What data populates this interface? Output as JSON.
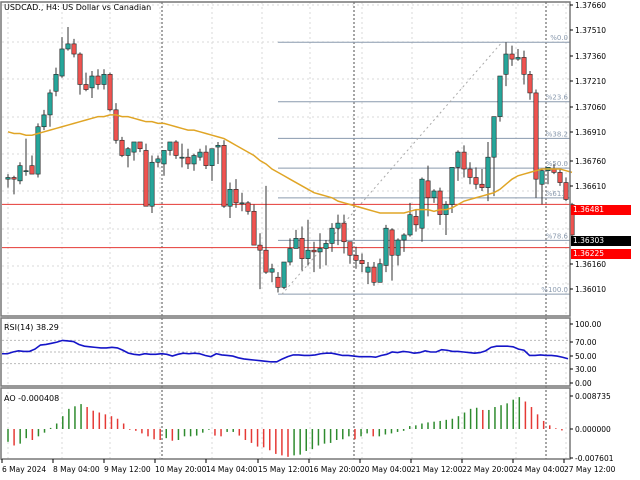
{
  "header": {
    "symbol_label": "USDCAD., H4:  US Dollar vs Canadian"
  },
  "colors": {
    "bull": "#26a69a",
    "bear": "#ef5350",
    "ma": "#e0a526",
    "rsi": "#1515c8",
    "ao_up": "#2e8b2e",
    "ao_down": "#e53935",
    "hline": "#e53935",
    "fib": "#8a9aae",
    "grid": "#d8d8d8",
    "frame": "#777777"
  },
  "price_axis": {
    "ticks": [
      "1.37660",
      "1.37510",
      "1.37360",
      "1.37210",
      "1.37060",
      "1.36910",
      "1.36760",
      "1.36610",
      "1.36160",
      "1.36010"
    ],
    "tags": [
      {
        "label": "1.36481",
        "bg": "#ff0000",
        "y": 210
      },
      {
        "label": "1.36303",
        "bg": "#000000",
        "y": 241
      },
      {
        "label": "1.36225",
        "bg": "#ff0000",
        "y": 254
      }
    ]
  },
  "rsi_panel": {
    "label": "RSI(14) 38.29",
    "ticks": [
      "100.00",
      "70.00",
      "50.00",
      "30.00",
      "0.00"
    ]
  },
  "ao_panel": {
    "label": "AO -0.000408",
    "ticks": [
      "0.008735",
      "0.000000",
      "-0.007601"
    ]
  },
  "time_axis": {
    "ticks": [
      "6 May 2024",
      "8 May 04:00",
      "9 May 12:00",
      "10 May 20:00",
      "14 May 04:00",
      "15 May 12:00",
      "16 May 20:00",
      "20 May 04:00",
      "21 May 12:00",
      "22 May 20:00",
      "24 May 04:00",
      "27 May 12:00"
    ]
  },
  "fibonacci": {
    "levels": [
      "%0.0",
      "%23.6",
      "%38.2",
      "%50.0",
      "%61.8",
      "%78.6",
      "%100.0"
    ]
  },
  "chart_data": {
    "type": "candlestick",
    "title": "USDCAD., H4: US Dollar vs Canadian",
    "x_tick_labels": [
      "6 May 2024",
      "8 May 04:00",
      "9 May 12:00",
      "10 May 20:00",
      "14 May 04:00",
      "15 May 12:00",
      "16 May 20:00",
      "20 May 04:00",
      "21 May 12:00",
      "22 May 20:00",
      "24 May 04:00",
      "27 May 12:00"
    ],
    "y_range": [
      1.3594,
      1.3768
    ],
    "horizontal_lines": [
      1.36481,
      1.36225
    ],
    "last_price": 1.36303,
    "fibonacci_retracement": {
      "high": 1.3744,
      "low": 1.3595,
      "levels": {
        "0.0": 1.3744,
        "23.6": 1.37088,
        "38.2": 1.36871,
        "50.0": 1.36695,
        "61.8": 1.36519,
        "78.6": 1.36268,
        "100.0": 1.3595
      }
    },
    "candles": [
      {
        "o": 1.3663,
        "h": 1.3666,
        "l": 1.3658,
        "c": 1.3664
      },
      {
        "o": 1.3664,
        "h": 1.3665,
        "l": 1.3654,
        "c": 1.3663
      },
      {
        "o": 1.3662,
        "h": 1.3673,
        "l": 1.366,
        "c": 1.3671
      },
      {
        "o": 1.3668,
        "h": 1.3687,
        "l": 1.3665,
        "c": 1.3668
      },
      {
        "o": 1.3671,
        "h": 1.3677,
        "l": 1.3668,
        "c": 1.3666
      },
      {
        "o": 1.3666,
        "h": 1.3696,
        "l": 1.3664,
        "c": 1.3694
      },
      {
        "o": 1.3694,
        "h": 1.3704,
        "l": 1.3692,
        "c": 1.3701
      },
      {
        "o": 1.3701,
        "h": 1.3716,
        "l": 1.3694,
        "c": 1.3714
      },
      {
        "o": 1.3715,
        "h": 1.3729,
        "l": 1.3712,
        "c": 1.3725
      },
      {
        "o": 1.3724,
        "h": 1.3747,
        "l": 1.3723,
        "c": 1.374
      },
      {
        "o": 1.374,
        "h": 1.3753,
        "l": 1.3739,
        "c": 1.3743
      },
      {
        "o": 1.3743,
        "h": 1.3746,
        "l": 1.3735,
        "c": 1.3737
      },
      {
        "o": 1.3737,
        "h": 1.3738,
        "l": 1.3713,
        "c": 1.3719
      },
      {
        "o": 1.3719,
        "h": 1.3726,
        "l": 1.3715,
        "c": 1.3716
      },
      {
        "o": 1.3717,
        "h": 1.3727,
        "l": 1.3711,
        "c": 1.3724
      },
      {
        "o": 1.3724,
        "h": 1.3728,
        "l": 1.3716,
        "c": 1.3719
      },
      {
        "o": 1.3719,
        "h": 1.3728,
        "l": 1.3716,
        "c": 1.3725
      },
      {
        "o": 1.3725,
        "h": 1.3726,
        "l": 1.3703,
        "c": 1.3704
      },
      {
        "o": 1.3704,
        "h": 1.3708,
        "l": 1.3684,
        "c": 1.3686
      },
      {
        "o": 1.3686,
        "h": 1.3688,
        "l": 1.3676,
        "c": 1.3677
      },
      {
        "o": 1.3677,
        "h": 1.3682,
        "l": 1.367,
        "c": 1.3681
      },
      {
        "o": 1.3679,
        "h": 1.3685,
        "l": 1.3674,
        "c": 1.3685
      },
      {
        "o": 1.3685,
        "h": 1.3685,
        "l": 1.3679,
        "c": 1.3681
      },
      {
        "o": 1.368,
        "h": 1.3684,
        "l": 1.3647,
        "c": 1.3647
      },
      {
        "o": 1.3647,
        "h": 1.3677,
        "l": 1.3643,
        "c": 1.3673
      },
      {
        "o": 1.3673,
        "h": 1.3677,
        "l": 1.367,
        "c": 1.3675
      },
      {
        "o": 1.3672,
        "h": 1.3678,
        "l": 1.3665,
        "c": 1.368
      },
      {
        "o": 1.368,
        "h": 1.3684,
        "l": 1.3677,
        "c": 1.3685
      },
      {
        "o": 1.3685,
        "h": 1.3686,
        "l": 1.3675,
        "c": 1.3677
      },
      {
        "o": 1.3676,
        "h": 1.3684,
        "l": 1.367,
        "c": 1.3676
      },
      {
        "o": 1.3676,
        "h": 1.3681,
        "l": 1.3669,
        "c": 1.3672
      },
      {
        "o": 1.3672,
        "h": 1.3678,
        "l": 1.3668,
        "c": 1.3677
      },
      {
        "o": 1.3676,
        "h": 1.3681,
        "l": 1.3674,
        "c": 1.3679
      },
      {
        "o": 1.3679,
        "h": 1.3683,
        "l": 1.3669,
        "c": 1.3671
      },
      {
        "o": 1.3671,
        "h": 1.3675,
        "l": 1.3662,
        "c": 1.3681
      },
      {
        "o": 1.3682,
        "h": 1.3685,
        "l": 1.3672,
        "c": 1.3683
      },
      {
        "o": 1.3683,
        "h": 1.3686,
        "l": 1.3646,
        "c": 1.3647
      },
      {
        "o": 1.3647,
        "h": 1.3661,
        "l": 1.364,
        "c": 1.3657
      },
      {
        "o": 1.3657,
        "h": 1.3663,
        "l": 1.3646,
        "c": 1.3649
      },
      {
        "o": 1.3649,
        "h": 1.3655,
        "l": 1.3644,
        "c": 1.3649
      },
      {
        "o": 1.3649,
        "h": 1.365,
        "l": 1.3642,
        "c": 1.3644
      },
      {
        "o": 1.3644,
        "h": 1.3648,
        "l": 1.3625,
        "c": 1.3624
      },
      {
        "o": 1.3624,
        "h": 1.3631,
        "l": 1.3598,
        "c": 1.3621
      },
      {
        "o": 1.3621,
        "h": 1.3659,
        "l": 1.3607,
        "c": 1.3608
      },
      {
        "o": 1.3608,
        "h": 1.3613,
        "l": 1.3602,
        "c": 1.361
      },
      {
        "o": 1.3605,
        "h": 1.3608,
        "l": 1.3596,
        "c": 1.3599
      },
      {
        "o": 1.3599,
        "h": 1.3614,
        "l": 1.3598,
        "c": 1.3614
      },
      {
        "o": 1.3614,
        "h": 1.3628,
        "l": 1.3612,
        "c": 1.3622
      },
      {
        "o": 1.3622,
        "h": 1.3633,
        "l": 1.3622,
        "c": 1.3628
      },
      {
        "o": 1.3628,
        "h": 1.3635,
        "l": 1.3609,
        "c": 1.3616
      },
      {
        "o": 1.3616,
        "h": 1.3639,
        "l": 1.3612,
        "c": 1.3621
      },
      {
        "o": 1.3621,
        "h": 1.3626,
        "l": 1.3608,
        "c": 1.362
      },
      {
        "o": 1.362,
        "h": 1.3631,
        "l": 1.361,
        "c": 1.3622
      },
      {
        "o": 1.3622,
        "h": 1.3627,
        "l": 1.3612,
        "c": 1.3625
      },
      {
        "o": 1.3625,
        "h": 1.3637,
        "l": 1.362,
        "c": 1.3634
      },
      {
        "o": 1.3634,
        "h": 1.3642,
        "l": 1.3624,
        "c": 1.3637
      },
      {
        "o": 1.3637,
        "h": 1.3642,
        "l": 1.3619,
        "c": 1.3626
      },
      {
        "o": 1.3626,
        "h": 1.3626,
        "l": 1.3613,
        "c": 1.3618
      },
      {
        "o": 1.3618,
        "h": 1.3623,
        "l": 1.361,
        "c": 1.3615
      },
      {
        "o": 1.3615,
        "h": 1.3619,
        "l": 1.3608,
        "c": 1.3613
      },
      {
        "o": 1.3608,
        "h": 1.3614,
        "l": 1.3601,
        "c": 1.3611
      },
      {
        "o": 1.3611,
        "h": 1.3614,
        "l": 1.36,
        "c": 1.3602
      },
      {
        "o": 1.3602,
        "h": 1.3616,
        "l": 1.3603,
        "c": 1.3613
      },
      {
        "o": 1.3612,
        "h": 1.3636,
        "l": 1.3608,
        "c": 1.3634
      },
      {
        "o": 1.3633,
        "h": 1.3634,
        "l": 1.3603,
        "c": 1.3618
      },
      {
        "o": 1.3618,
        "h": 1.3628,
        "l": 1.3612,
        "c": 1.3627
      },
      {
        "o": 1.3627,
        "h": 1.3631,
        "l": 1.362,
        "c": 1.363
      },
      {
        "o": 1.363,
        "h": 1.3649,
        "l": 1.3629,
        "c": 1.3642
      },
      {
        "o": 1.3641,
        "h": 1.3645,
        "l": 1.3632,
        "c": 1.3636
      },
      {
        "o": 1.3634,
        "h": 1.3664,
        "l": 1.3626,
        "c": 1.3663
      },
      {
        "o": 1.3662,
        "h": 1.3671,
        "l": 1.3641,
        "c": 1.3652
      },
      {
        "o": 1.3652,
        "h": 1.3657,
        "l": 1.3649,
        "c": 1.3656
      },
      {
        "o": 1.3656,
        "h": 1.3658,
        "l": 1.3636,
        "c": 1.3642
      },
      {
        "o": 1.3642,
        "h": 1.365,
        "l": 1.363,
        "c": 1.3648
      },
      {
        "o": 1.3648,
        "h": 1.367,
        "l": 1.3643,
        "c": 1.367
      },
      {
        "o": 1.367,
        "h": 1.368,
        "l": 1.3662,
        "c": 1.3679
      },
      {
        "o": 1.3679,
        "h": 1.3683,
        "l": 1.3664,
        "c": 1.3669
      },
      {
        "o": 1.3669,
        "h": 1.3673,
        "l": 1.366,
        "c": 1.3664
      },
      {
        "o": 1.3664,
        "h": 1.367,
        "l": 1.3657,
        "c": 1.366
      },
      {
        "o": 1.366,
        "h": 1.3669,
        "l": 1.3656,
        "c": 1.3658
      },
      {
        "o": 1.3658,
        "h": 1.3685,
        "l": 1.365,
        "c": 1.3676
      },
      {
        "o": 1.3676,
        "h": 1.37,
        "l": 1.3653,
        "c": 1.37
      },
      {
        "o": 1.37,
        "h": 1.3724,
        "l": 1.3697,
        "c": 1.3724
      },
      {
        "o": 1.3725,
        "h": 1.3744,
        "l": 1.3718,
        "c": 1.3737
      },
      {
        "o": 1.3737,
        "h": 1.3742,
        "l": 1.373,
        "c": 1.3734
      },
      {
        "o": 1.3734,
        "h": 1.374,
        "l": 1.3733,
        "c": 1.3735
      },
      {
        "o": 1.3735,
        "h": 1.3739,
        "l": 1.3719,
        "c": 1.3725
      },
      {
        "o": 1.3725,
        "h": 1.3727,
        "l": 1.371,
        "c": 1.3714
      },
      {
        "o": 1.3714,
        "h": 1.3716,
        "l": 1.3652,
        "c": 1.3663
      },
      {
        "o": 1.366,
        "h": 1.3669,
        "l": 1.3648,
        "c": 1.3668
      },
      {
        "o": 1.3668,
        "h": 1.367,
        "l": 1.366,
        "c": 1.367
      },
      {
        "o": 1.3669,
        "h": 1.3672,
        "l": 1.3666,
        "c": 1.3667
      },
      {
        "o": 1.3667,
        "h": 1.3669,
        "l": 1.3659,
        "c": 1.3661
      },
      {
        "o": 1.3661,
        "h": 1.3664,
        "l": 1.365,
        "c": 1.3651
      },
      {
        "o": 1.3648,
        "h": 1.3649,
        "l": 1.3626,
        "c": 1.363
      }
    ],
    "ma": [
      1.3691,
      1.369,
      1.369,
      1.3689,
      1.3689,
      1.369,
      1.3691,
      1.3692,
      1.3693,
      1.3694,
      1.3695,
      1.3696,
      1.3697,
      1.3698,
      1.3699,
      1.37,
      1.37,
      1.3701,
      1.3701,
      1.37,
      1.37,
      1.3699,
      1.3698,
      1.3697,
      1.3697,
      1.3696,
      1.3696,
      1.3695,
      1.3694,
      1.3693,
      1.3692,
      1.3692,
      1.3691,
      1.369,
      1.3689,
      1.3688,
      1.3687,
      1.3685,
      1.3683,
      1.3681,
      1.3679,
      1.3677,
      1.3674,
      1.3672,
      1.3669,
      1.3667,
      1.3665,
      1.3663,
      1.3661,
      1.3659,
      1.3657,
      1.3655,
      1.3654,
      1.3653,
      1.3652,
      1.365,
      1.3649,
      1.3648,
      1.3647,
      1.3646,
      1.3645,
      1.3644,
      1.3643,
      1.3643,
      1.3643,
      1.3643,
      1.3643,
      1.3644,
      1.3645,
      1.3645,
      1.3645,
      1.3644,
      1.3645,
      1.3645,
      1.3646,
      1.3648,
      1.365,
      1.3651,
      1.3652,
      1.3653,
      1.3654,
      1.3655,
      1.3657,
      1.366,
      1.3663,
      1.3665,
      1.3666,
      1.3667,
      1.3668,
      1.3669,
      1.3669,
      1.3669,
      1.3669,
      1.3668,
      1.3667
    ],
    "rsi": [
      47,
      47,
      50,
      52,
      51,
      51,
      55,
      62,
      63,
      65,
      67,
      70,
      69,
      68,
      63,
      60,
      59,
      58,
      57,
      57,
      58,
      57,
      53,
      48,
      46,
      45,
      47,
      46,
      46,
      47,
      46,
      43,
      46,
      48,
      47,
      48,
      47,
      44,
      42,
      47,
      45,
      44,
      43,
      40,
      38,
      37,
      36,
      35,
      34,
      33,
      33,
      38,
      42,
      45,
      45,
      44,
      44,
      45,
      47,
      48,
      48,
      46,
      44,
      44,
      43,
      42,
      42,
      42,
      41,
      44,
      46,
      50,
      49,
      51,
      50,
      48,
      49,
      52,
      50,
      50,
      54,
      53,
      51,
      51,
      50,
      49,
      48,
      49,
      52,
      58,
      60,
      60,
      60,
      59,
      55,
      53,
      44,
      44,
      45,
      44,
      44,
      43,
      41,
      38.29
    ],
    "ao": [
      -0.0035,
      -0.0045,
      -0.004,
      -0.0025,
      -0.003,
      -0.002,
      -0.001,
      0.0003,
      0.0015,
      0.0035,
      0.0055,
      0.0062,
      0.0068,
      0.006,
      0.005,
      0.0045,
      0.004,
      0.0035,
      0.0028,
      0.0015,
      -0.0002,
      -0.0005,
      -0.0012,
      -0.002,
      -0.0028,
      -0.003,
      -0.0025,
      -0.0032,
      -0.003,
      -0.002,
      -0.002,
      -0.0018,
      -0.001,
      -0.0002,
      -0.0018,
      -0.002,
      -0.0008,
      -0.0008,
      -0.0018,
      -0.003,
      -0.0038,
      -0.0048,
      -0.005,
      -0.0058,
      -0.0068,
      -0.0072,
      -0.0076,
      -0.0072,
      -0.007,
      -0.006,
      -0.0055,
      -0.0045,
      -0.004,
      -0.0038,
      -0.003,
      -0.0028,
      -0.002,
      -0.0028,
      -0.002,
      -0.0012,
      -0.002,
      -0.002,
      -0.0015,
      -0.0012,
      -0.0008,
      -0.0005,
      0.0008,
      0.001,
      0.0015,
      0.0018,
      0.002,
      0.0022,
      0.0025,
      0.0028,
      0.0035,
      0.0045,
      0.0055,
      0.0058,
      0.0052,
      0.0052,
      0.006,
      0.0065,
      0.007,
      0.008,
      0.0087,
      0.0075,
      0.006,
      0.004,
      0.0022,
      0.001,
      0.0002,
      -0.0004
    ]
  }
}
